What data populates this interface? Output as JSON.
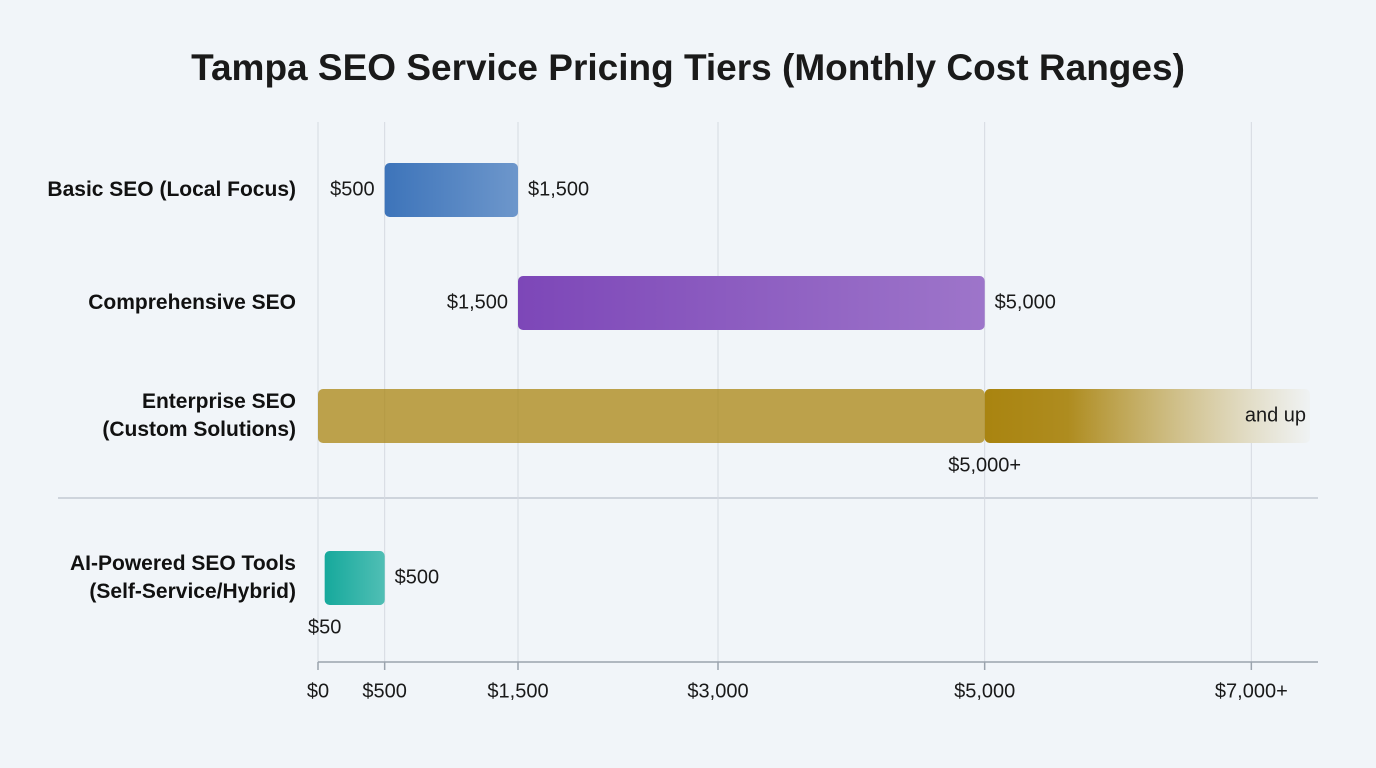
{
  "chart_data": {
    "type": "range_bar",
    "title": "Tampa SEO Service Pricing Tiers (Monthly Cost Ranges)",
    "categories": [
      "Basic SEO (Local Focus)",
      "Comprehensive SEO",
      "Enterprise SEO\n(Custom Solutions)",
      "AI-Powered SEO Tools\n(Self-Service/Hybrid)"
    ],
    "low": [
      500,
      1500,
      5000,
      50
    ],
    "low_labels": [
      "$500",
      "$1,500",
      "$5,000+",
      "$50"
    ],
    "high": [
      1500,
      5000,
      null,
      500
    ],
    "high_labels": [
      "$1,500",
      "$5,000",
      null,
      "$500"
    ],
    "open_end_label": "and up",
    "colors": [
      "#3d74ba",
      "#7d47b8",
      "#a98410",
      "#16a99c"
    ],
    "xlim": [
      0,
      7500
    ],
    "xticks": [
      {
        "value": 0,
        "label": "$0"
      },
      {
        "value": 500,
        "label": "$500"
      },
      {
        "value": 1500,
        "label": "$1,500"
      },
      {
        "value": 3000,
        "label": "$3,000"
      },
      {
        "value": 5000,
        "label": "$5,000"
      },
      {
        "value": 7000,
        "label": "$7,000+"
      }
    ],
    "grid": true
  }
}
